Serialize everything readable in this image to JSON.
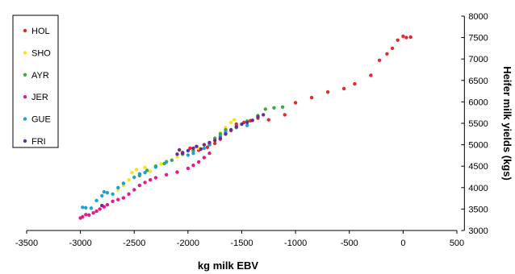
{
  "chart_data": {
    "type": "scatter",
    "xlabel": "kg milk EBV",
    "ylabel": "Heifer milk yields (kgs)",
    "xlim": [
      -3500,
      500
    ],
    "ylim": [
      3000,
      8000
    ],
    "x_ticks": [
      "-3500",
      "-3000",
      "-2500",
      "-2000",
      "-1500",
      "-1000",
      "-500",
      "0",
      "500"
    ],
    "y_ticks": [
      "3000",
      "3500",
      "4000",
      "4500",
      "5000",
      "5500",
      "6000",
      "6500",
      "7000",
      "7500",
      "8000"
    ],
    "legend_position": "top-left",
    "series": [
      {
        "name": "HOL",
        "color": "#e8262b",
        "points": [
          [
            -2050,
            4820
          ],
          [
            -1980,
            4920
          ],
          [
            -1900,
            4870
          ],
          [
            -1820,
            4940
          ],
          [
            -1750,
            5030
          ],
          [
            -1700,
            5130
          ],
          [
            -1650,
            5250
          ],
          [
            -1600,
            5330
          ],
          [
            -1550,
            5480
          ],
          [
            -1480,
            5520
          ],
          [
            -1420,
            5560
          ],
          [
            -1350,
            5620
          ],
          [
            -1250,
            5580
          ],
          [
            -1100,
            5700
          ],
          [
            -1000,
            5980
          ],
          [
            -850,
            6100
          ],
          [
            -700,
            6230
          ],
          [
            -550,
            6310
          ],
          [
            -450,
            6420
          ],
          [
            -300,
            6620
          ],
          [
            -220,
            6970
          ],
          [
            -150,
            7120
          ],
          [
            -100,
            7250
          ],
          [
            -50,
            7440
          ],
          [
            0,
            7530
          ],
          [
            30,
            7500
          ],
          [
            70,
            7510
          ]
        ]
      },
      {
        "name": "SHO",
        "color": "#f5e51e",
        "points": [
          [
            -2650,
            3950
          ],
          [
            -2600,
            4050
          ],
          [
            -2550,
            4180
          ],
          [
            -2520,
            4350
          ],
          [
            -2480,
            4420
          ],
          [
            -2450,
            4300
          ],
          [
            -2400,
            4470
          ],
          [
            -2350,
            4380
          ],
          [
            -2300,
            4500
          ],
          [
            -2250,
            4550
          ],
          [
            -2200,
            4620
          ],
          [
            -2100,
            4720
          ],
          [
            -2050,
            4780
          ],
          [
            -1950,
            4850
          ],
          [
            -1900,
            4920
          ],
          [
            -1800,
            5050
          ],
          [
            -1750,
            5150
          ],
          [
            -1700,
            5280
          ],
          [
            -1650,
            5400
          ],
          [
            -1600,
            5520
          ],
          [
            -1570,
            5580
          ]
        ]
      },
      {
        "name": "AYR",
        "color": "#3aaa44",
        "points": [
          [
            -2450,
            4280
          ],
          [
            -2380,
            4400
          ],
          [
            -2300,
            4500
          ],
          [
            -2220,
            4560
          ],
          [
            -2150,
            4640
          ],
          [
            -2050,
            4780
          ],
          [
            -1950,
            4860
          ],
          [
            -1800,
            5000
          ],
          [
            -1750,
            5150
          ],
          [
            -1700,
            5250
          ],
          [
            -1650,
            5350
          ],
          [
            -1550,
            5430
          ],
          [
            -1450,
            5550
          ],
          [
            -1350,
            5680
          ],
          [
            -1280,
            5830
          ],
          [
            -1200,
            5860
          ],
          [
            -1120,
            5880
          ]
        ]
      },
      {
        "name": "JER",
        "color": "#e6198a",
        "points": [
          [
            -3000,
            3290
          ],
          [
            -2980,
            3320
          ],
          [
            -2950,
            3370
          ],
          [
            -2920,
            3360
          ],
          [
            -2880,
            3410
          ],
          [
            -2850,
            3450
          ],
          [
            -2820,
            3500
          ],
          [
            -2780,
            3550
          ],
          [
            -2750,
            3600
          ],
          [
            -2700,
            3680
          ],
          [
            -2650,
            3720
          ],
          [
            -2600,
            3760
          ],
          [
            -2550,
            3850
          ],
          [
            -2500,
            3950
          ],
          [
            -2450,
            4050
          ],
          [
            -2400,
            4120
          ],
          [
            -2350,
            4180
          ],
          [
            -2300,
            4230
          ],
          [
            -2200,
            4300
          ],
          [
            -2100,
            4360
          ],
          [
            -2000,
            4450
          ],
          [
            -1950,
            4520
          ],
          [
            -1900,
            4600
          ],
          [
            -1850,
            4700
          ],
          [
            -1800,
            4800
          ]
        ]
      },
      {
        "name": "GUE",
        "color": "#1ba2dc",
        "points": [
          [
            -2980,
            3540
          ],
          [
            -2950,
            3530
          ],
          [
            -2900,
            3520
          ],
          [
            -2850,
            3700
          ],
          [
            -2800,
            3810
          ],
          [
            -2780,
            3900
          ],
          [
            -2750,
            3880
          ],
          [
            -2700,
            3850
          ],
          [
            -2650,
            4000
          ],
          [
            -2600,
            4100
          ],
          [
            -2500,
            4240
          ],
          [
            -2450,
            4320
          ],
          [
            -2400,
            4350
          ],
          [
            -2300,
            4480
          ],
          [
            -2200,
            4600
          ],
          [
            -2000,
            4760
          ],
          [
            -1950,
            4800
          ],
          [
            -1850,
            4920
          ],
          [
            -1800,
            5000
          ],
          [
            -1700,
            5200
          ],
          [
            -1650,
            5300
          ],
          [
            -1550,
            5400
          ],
          [
            -1450,
            5450
          ]
        ]
      },
      {
        "name": "FRI",
        "color": "#6a2d8f",
        "points": [
          [
            -2800,
            3580
          ],
          [
            -2100,
            4780
          ],
          [
            -2080,
            4880
          ],
          [
            -2050,
            4800
          ],
          [
            -2000,
            4860
          ],
          [
            -1950,
            4920
          ],
          [
            -1920,
            4960
          ],
          [
            -1880,
            4900
          ],
          [
            -1850,
            5000
          ],
          [
            -1800,
            5050
          ],
          [
            -1750,
            5100
          ],
          [
            -1700,
            5150
          ],
          [
            -1650,
            5250
          ],
          [
            -1600,
            5350
          ],
          [
            -1550,
            5420
          ],
          [
            -1500,
            5480
          ],
          [
            -1450,
            5520
          ],
          [
            -1400,
            5570
          ],
          [
            -1350,
            5650
          ],
          [
            -1300,
            5700
          ]
        ]
      }
    ]
  }
}
